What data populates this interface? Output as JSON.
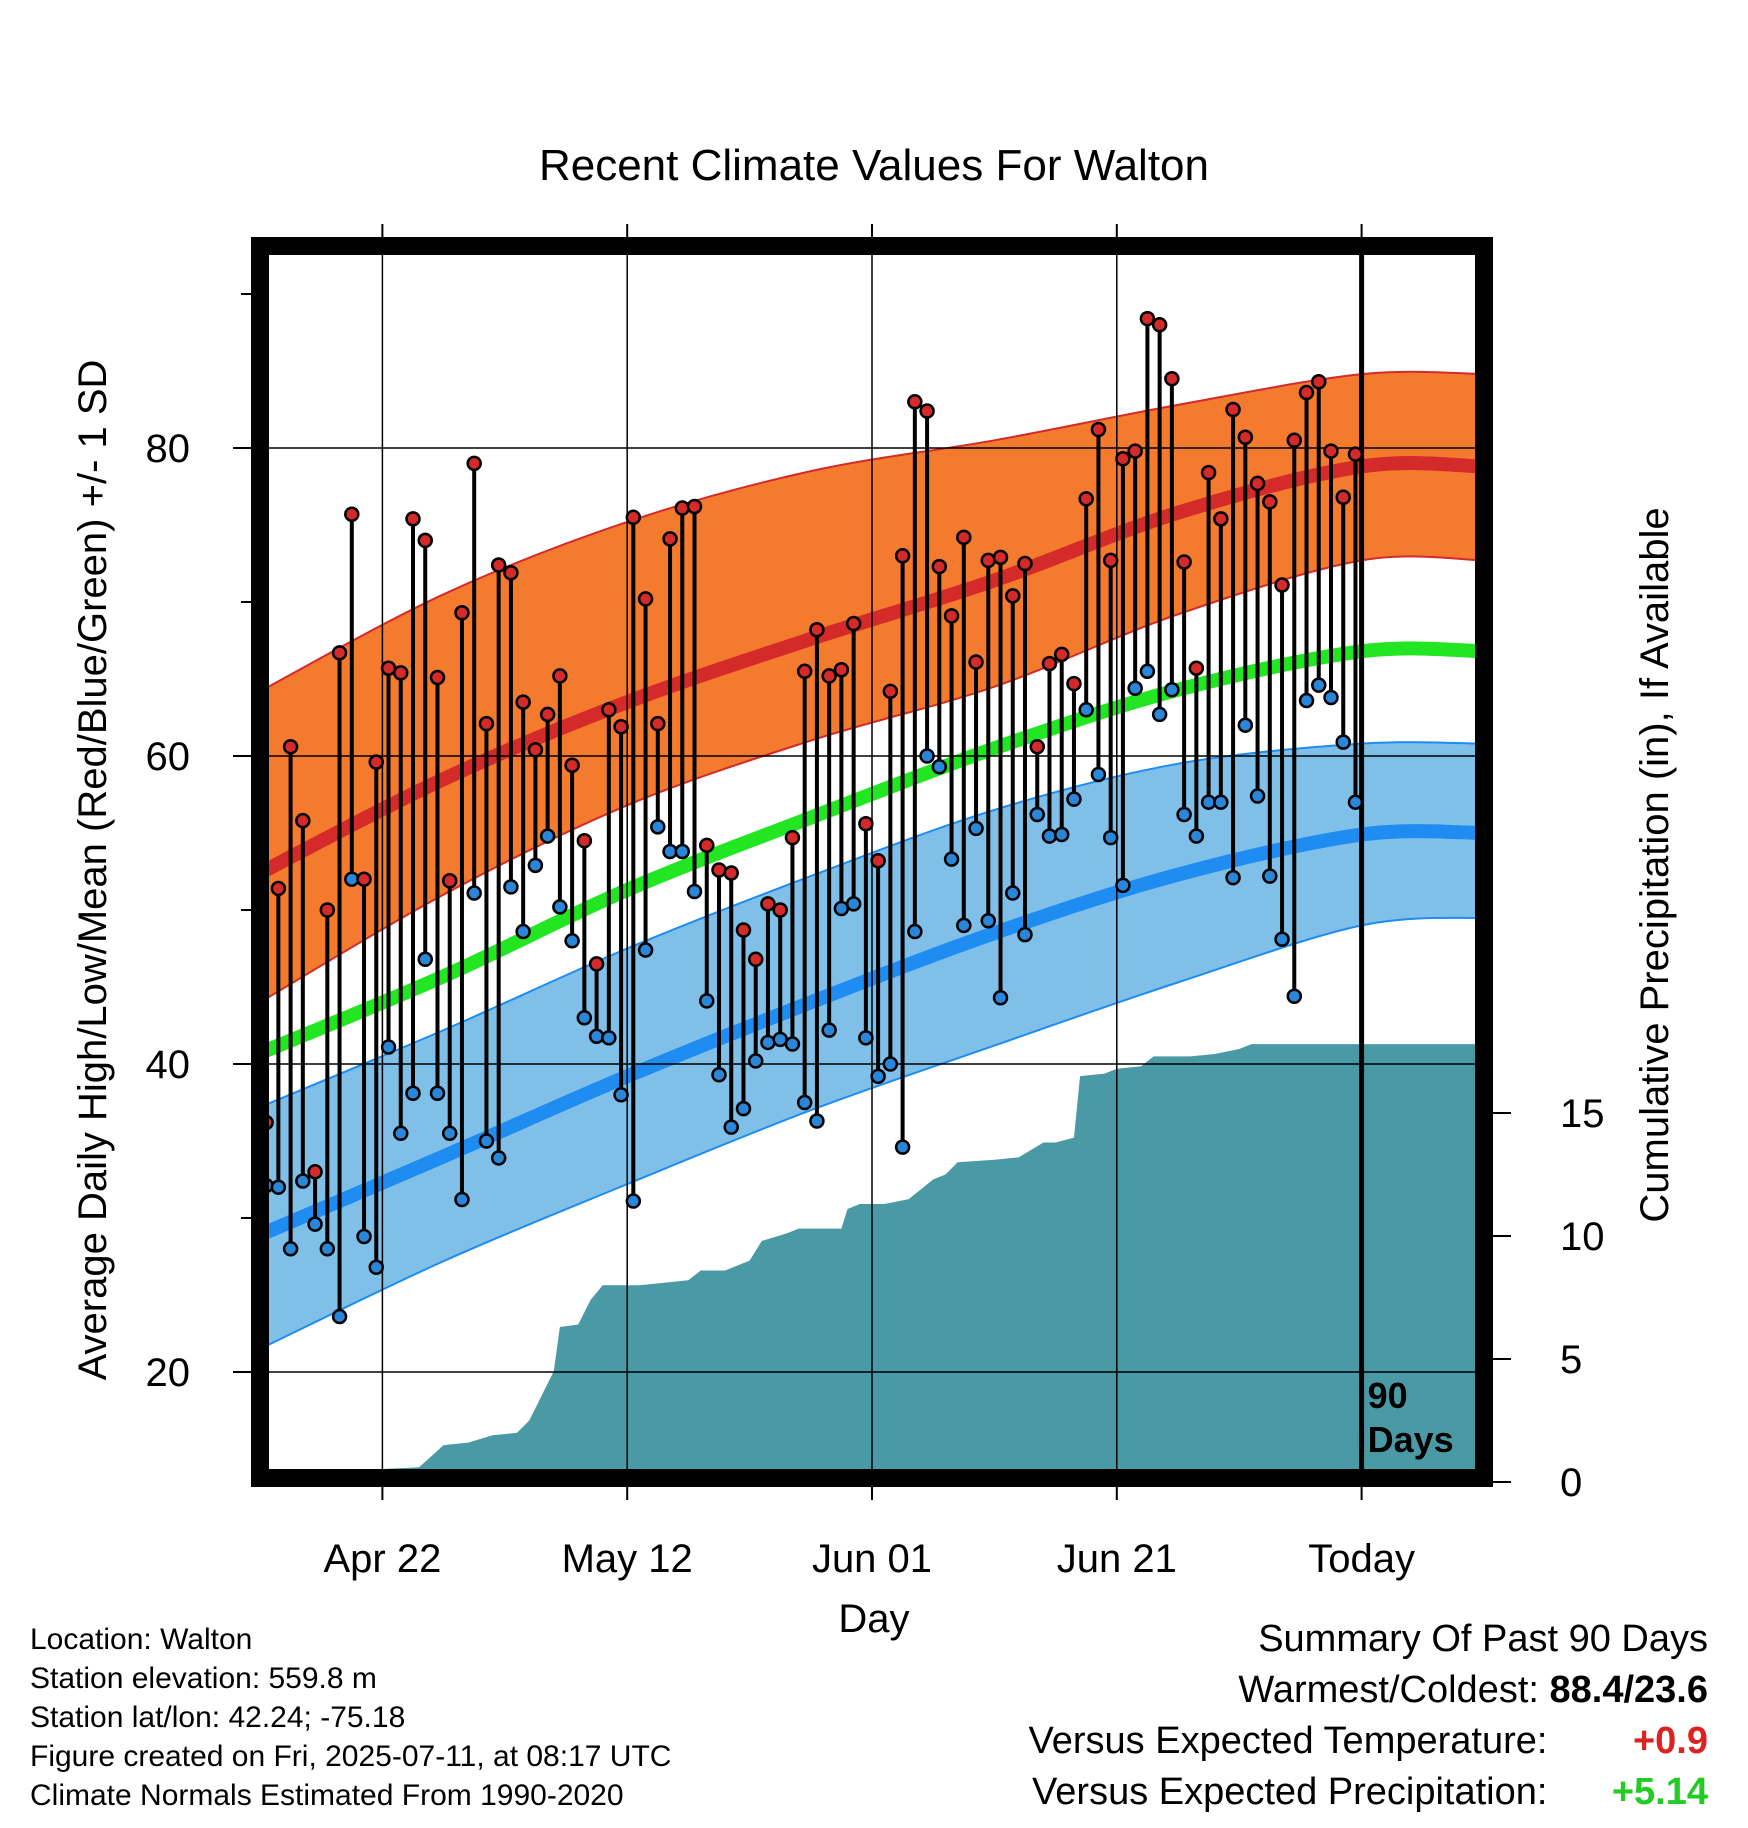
{
  "chart_data": {
    "type": "line",
    "title": "Recent Climate Values For Walton",
    "xlabel": "Day",
    "ylabel": "Average Daily High/Low/Mean (Red/Blue/Green) +/- 1 SD",
    "y2label": "Cumulative Precipitation (in), If Available",
    "x_tick_labels": [
      "Apr 22",
      "May 12",
      "Jun 01",
      "Jun 21",
      "Today"
    ],
    "y_ticks": [
      20,
      40,
      60,
      80
    ],
    "y2_ticks": [
      0,
      5,
      10,
      15
    ],
    "today_label": "90 Days",
    "normals": {
      "high_mean": [
        [
          0,
          52.4
        ],
        [
          15,
          58.5
        ],
        [
          30,
          63.5
        ],
        [
          45,
          67.6
        ],
        [
          60,
          71.4
        ],
        [
          75,
          75.8
        ],
        [
          90,
          78.8
        ],
        [
          100,
          78.8
        ]
      ],
      "high_sd_upper": [
        [
          0,
          64.2
        ],
        [
          15,
          70.5
        ],
        [
          30,
          75.2
        ],
        [
          45,
          78.5
        ],
        [
          60,
          80.5
        ],
        [
          75,
          82.8
        ],
        [
          90,
          84.8
        ],
        [
          100,
          84.8
        ]
      ],
      "high_sd_lower": [
        [
          0,
          44
        ],
        [
          15,
          51
        ],
        [
          30,
          56.8
        ],
        [
          45,
          61
        ],
        [
          60,
          64.5
        ],
        [
          75,
          69.2
        ],
        [
          90,
          72.7
        ],
        [
          100,
          72.7
        ]
      ],
      "mean": [
        [
          0,
          40.7
        ],
        [
          15,
          45.7
        ],
        [
          30,
          51.3
        ],
        [
          45,
          56
        ],
        [
          60,
          60.5
        ],
        [
          75,
          64.3
        ],
        [
          90,
          66.8
        ],
        [
          100,
          66.8
        ]
      ],
      "low_mean": [
        [
          0,
          28.9
        ],
        [
          15,
          34
        ],
        [
          30,
          39.2
        ],
        [
          45,
          44
        ],
        [
          60,
          48.5
        ],
        [
          75,
          52.3
        ],
        [
          90,
          54.9
        ],
        [
          100,
          55
        ]
      ],
      "low_sd_upper": [
        [
          0,
          37.2
        ],
        [
          15,
          42.2
        ],
        [
          30,
          47.5
        ],
        [
          45,
          52.2
        ],
        [
          60,
          56.5
        ],
        [
          75,
          59.5
        ],
        [
          90,
          60.8
        ],
        [
          100,
          60.8
        ]
      ],
      "low_sd_lower": [
        [
          0,
          21.5
        ],
        [
          15,
          27.2
        ],
        [
          30,
          32.2
        ],
        [
          45,
          37
        ],
        [
          60,
          41.2
        ],
        [
          75,
          45.3
        ],
        [
          90,
          49
        ],
        [
          100,
          49.5
        ]
      ]
    },
    "daily_high": [
      36.2,
      51.4,
      60.6,
      55.8,
      33.0,
      50.0,
      66.7,
      75.7,
      52.0,
      59.6,
      65.7,
      65.4,
      75.4,
      74.0,
      65.1,
      51.9,
      69.3,
      79.0,
      62.1,
      72.4,
      71.9,
      63.5,
      60.4,
      62.7,
      65.2,
      59.4,
      54.5,
      46.5,
      63.0,
      61.9,
      75.5,
      70.2,
      62.1,
      74.1,
      76.1,
      76.2,
      54.2,
      52.6,
      52.4,
      48.7,
      46.8,
      50.4,
      50.0,
      54.7,
      65.5,
      68.2,
      65.2,
      65.6,
      68.6,
      55.6,
      53.2,
      64.2,
      73.0,
      83.0,
      82.4,
      72.3,
      69.1,
      74.2,
      66.1,
      72.7,
      72.9,
      70.4,
      72.5,
      60.6,
      66.0,
      66.6,
      64.7,
      76.7,
      81.2,
      72.7,
      79.3,
      79.8,
      88.4,
      88.0,
      84.5,
      72.6,
      65.7,
      78.4,
      75.4,
      82.5,
      80.7,
      77.7,
      76.5,
      71.1,
      80.5,
      83.6,
      84.3,
      79.8,
      76.8,
      79.6
    ],
    "daily_low": [
      32.1,
      32.0,
      28.0,
      32.4,
      29.6,
      28.0,
      23.6,
      52.0,
      28.8,
      26.8,
      41.1,
      35.5,
      38.1,
      46.8,
      38.1,
      35.5,
      31.2,
      51.1,
      35.0,
      33.9,
      51.5,
      48.6,
      52.9,
      54.8,
      50.2,
      48.0,
      43.0,
      41.8,
      41.7,
      38.0,
      31.1,
      47.4,
      55.4,
      53.8,
      53.8,
      51.2,
      44.1,
      39.3,
      35.9,
      37.1,
      40.2,
      41.4,
      41.6,
      41.3,
      37.5,
      36.3,
      42.2,
      50.1,
      50.4,
      41.7,
      39.2,
      40.0,
      34.6,
      48.6,
      60.0,
      59.3,
      53.3,
      49.0,
      55.3,
      49.3,
      44.3,
      51.1,
      48.4,
      56.2,
      54.8,
      54.9,
      57.2,
      63.0,
      58.8,
      54.7,
      51.6,
      64.4,
      65.5,
      62.7,
      64.3,
      56.2,
      54.8,
      57.0,
      57.0,
      52.1,
      62.0,
      57.4,
      52.2,
      48.1,
      44.4,
      63.6,
      64.6,
      63.8,
      60.9,
      57.0
    ],
    "cumulative_precip": [
      [
        0,
        0
      ],
      [
        2.5,
        0
      ],
      [
        3.5,
        0.2
      ],
      [
        7.5,
        0.3
      ],
      [
        9,
        0.5
      ],
      [
        13,
        0.6
      ],
      [
        15,
        1.5
      ],
      [
        17,
        1.6
      ],
      [
        19,
        1.9
      ],
      [
        21,
        2.0
      ],
      [
        22,
        2.5
      ],
      [
        23,
        3.5
      ],
      [
        24,
        4.5
      ],
      [
        24.5,
        6.3
      ],
      [
        26,
        6.4
      ],
      [
        27,
        7.4
      ],
      [
        28,
        8.0
      ],
      [
        31,
        8.0
      ],
      [
        33,
        8.1
      ],
      [
        35,
        8.2
      ],
      [
        36,
        8.6
      ],
      [
        38,
        8.6
      ],
      [
        40,
        9.0
      ],
      [
        41,
        9.8
      ],
      [
        43,
        10.1
      ],
      [
        44,
        10.3
      ],
      [
        47.5,
        10.3
      ],
      [
        48,
        11.1
      ],
      [
        49,
        11.3
      ],
      [
        51,
        11.3
      ],
      [
        53,
        11.5
      ],
      [
        54,
        11.9
      ],
      [
        55,
        12.3
      ],
      [
        56,
        12.5
      ],
      [
        57,
        13.0
      ],
      [
        60,
        13.1
      ],
      [
        62,
        13.2
      ],
      [
        63,
        13.5
      ],
      [
        64,
        13.8
      ],
      [
        65,
        13.8
      ],
      [
        66.5,
        14.0
      ],
      [
        67,
        16.5
      ],
      [
        69,
        16.6
      ],
      [
        70,
        16.8
      ],
      [
        72,
        16.9
      ],
      [
        73,
        17.3
      ],
      [
        76,
        17.3
      ],
      [
        78,
        17.4
      ],
      [
        80,
        17.6
      ],
      [
        81,
        17.8
      ],
      [
        84,
        17.8
      ],
      [
        90,
        17.8
      ],
      [
        100,
        17.8
      ]
    ],
    "grid": true,
    "legend": "none"
  },
  "location_info": {
    "location": "Location: Walton",
    "elevation": "Station elevation: 559.8 m",
    "latlon": "Station lat/lon: 42.24; -75.18",
    "created": "Figure created on Fri, 2025-07-11, at 08:17 UTC",
    "normals": "Climate Normals Estimated From 1990-2020"
  },
  "summary": {
    "title": "Summary Of Past 90 Days",
    "warm_cold_label": "Warmest/Coldest:",
    "warm_cold_value": "88.4/23.6",
    "temp_label": "Versus Expected Temperature:",
    "temp_value": "+0.9",
    "temp_color": "#dd2222",
    "precip_label": "Versus Expected Precipitation:",
    "precip_value": "+5.14",
    "precip_color": "#22cc22"
  },
  "colors": {
    "high_band": "#f47a2e",
    "high_line": "#d42a2a",
    "mean_line": "#22e622",
    "low_band": "#80c0e8",
    "low_line": "#1e8cf0",
    "precip": "#4a9aa5",
    "high_dot": "#d42a2a",
    "low_dot": "#2a86d8"
  }
}
